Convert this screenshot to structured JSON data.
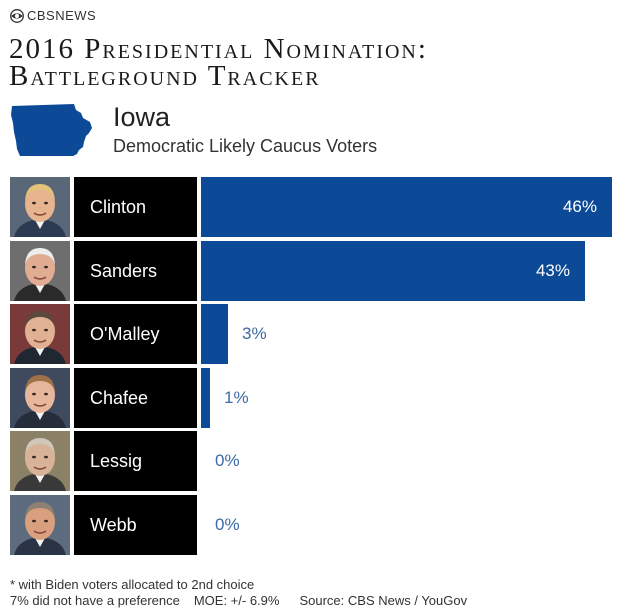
{
  "logo": {
    "text": "CBSNEWS",
    "icon": "cbs-eye-icon"
  },
  "title_lines": [
    "2016 Presidential Nomination:",
    "Battleground Tracker"
  ],
  "state": {
    "name": "Iowa",
    "icon": "iowa-state-icon",
    "population": "Democratic Likely Caucus Voters"
  },
  "chart_data": {
    "type": "bar",
    "orientation": "horizontal",
    "title": "2016 Presidential Nomination: Battleground Tracker",
    "subtitle": "Iowa",
    "categories": [
      "Clinton",
      "Sanders",
      "O'Malley",
      "Chafee",
      "Lessig",
      "Webb"
    ],
    "values": [
      46,
      43,
      3,
      1,
      0,
      0
    ],
    "value_labels": [
      "46%",
      "43%",
      "3%",
      "1%",
      "0%",
      "0%"
    ],
    "value_unit": "%",
    "xlim": [
      0,
      46
    ],
    "grid": false,
    "bar_color": "#0c4a97",
    "label_color_outside": "#3d6aa6"
  },
  "candidates": [
    {
      "name": "Clinton",
      "photo_icon": "clinton-photo",
      "skin": "#e6b48f",
      "hair": "#e2c27a",
      "bg": "#5a6778",
      "suit": "#2d3b52"
    },
    {
      "name": "Sanders",
      "photo_icon": "sanders-photo",
      "skin": "#e0ad92",
      "hair": "#ececec",
      "bg": "#6e6e6e",
      "suit": "#2a2a2a"
    },
    {
      "name": "O'Malley",
      "photo_icon": "omalley-photo",
      "skin": "#e1b193",
      "hair": "#5b4a3c",
      "bg": "#7a3a3a",
      "suit": "#1f2733"
    },
    {
      "name": "Chafee",
      "photo_icon": "chafee-photo",
      "skin": "#e7b79d",
      "hair": "#a07048",
      "bg": "#3f4a5e",
      "suit": "#252c3a"
    },
    {
      "name": "Lessig",
      "photo_icon": "lessig-photo",
      "skin": "#d9b397",
      "hair": "#cfc7b8",
      "bg": "#8a8167",
      "suit": "#393939"
    },
    {
      "name": "Webb",
      "photo_icon": "webb-photo",
      "skin": "#d8a07e",
      "hair": "#8e8072",
      "bg": "#5c6b7e",
      "suit": "#2b3444"
    }
  ],
  "footer": {
    "note": "* with Biden voters allocated to 2nd choice",
    "no_preference": "7% did not have a preference",
    "moe": "MOE: +/- 6.9%",
    "source": "Source: CBS News / YouGov"
  }
}
